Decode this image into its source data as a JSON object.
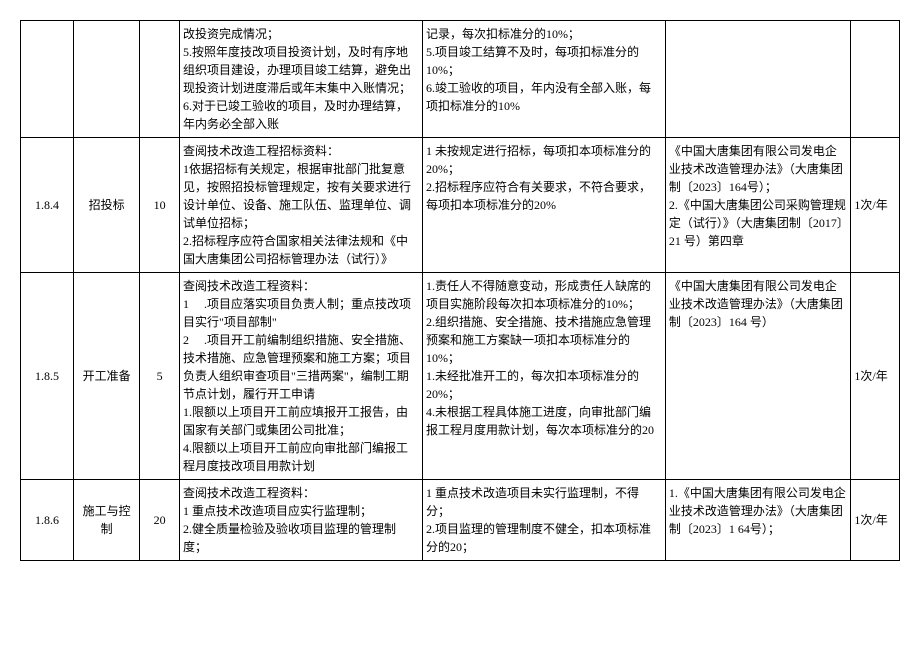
{
  "table": {
    "rows": [
      {
        "col1": "",
        "col2": "",
        "col3": "",
        "col4": "改投资完成情况；\n5.按照年度技改项目投资计划，及时有序地组织项目建设，办理项目竣工结算，避免出现投资计划进度滞后或年末集中入账情况；\n6.对于已竣工验收的项目，及时办理结算，年内务必全部入账",
        "col5": "记录，每次扣标准分的10%；\n5.项目竣工结算不及时，每项扣标准分的10%；\n6.竣工验收的项目，年内没有全部入账，每项扣标准分的10%",
        "col6": "",
        "col7": ""
      },
      {
        "col1": "1.8.4",
        "col2": "招投标",
        "col3": "10",
        "col4": "查阅技术改造工程招标资料：\n1依据招标有关规定，根据审批部门批复意见，按照招投标管理规定，按有关要求进行设计单位、设备、施工队伍、监理单位、调试单位招标；\n2.招标程序应符合国家相关法律法规和《中国大唐集团公司招标管理办法（试行）》",
        "col5": "1 未按规定进行招标，每项扣本项标准分的20%；\n2.招标程序应符合有关要求，不符合要求，每项扣本项标准分的20%",
        "col6": "《中国大唐集团有限公司发电企业技术改造管理办法》（大唐集团制〔2023〕164号）；\n2.《中国大唐集团公司采购管理规定（试行）》（大唐集团制〔2017〕21 号）第四章",
        "col7": "1次/年"
      },
      {
        "col1": "1.8.5",
        "col2": "开工准备",
        "col3": "5",
        "col4": "查阅技术改造工程资料：\n1 　.项目应落实项目负责人制；重点技改项目实行\"项目部制\"\n2 　.项目开工前编制组织措施、安全措施、技术措施、应急管理预案和施工方案；项目负责人组织审查项目\"三措两案\"，编制工期节点计划，履行开工申请\n1.限额以上项目开工前应填报开工报告，由国家有关部门或集团公司批准；\n4.限额以上项目开工前应向审批部门编报工程月度技改项目用款计划",
        "col5": "1.责任人不得随意变动，形成责任人缺席的项目实施阶段每次扣本项标准分的10%；\n2.组织措施、安全措施、技术措施应急管理预案和施工方案缺一项扣本项标准分的10%；\n1.未经批准开工的，每次扣本项标准分的20%；\n4.未根据工程具体施工进度，向审批部门编报工程月度用款计划，每次本项标准分的20",
        "col6": "《中国大唐集团有限公司发电企业技术改造管理办法》（大唐集团制〔2023〕164 号）",
        "col7": "1次/年"
      },
      {
        "col1": "1.8.6",
        "col2": "施工与控制",
        "col3": "20",
        "col4": "查阅技术改造工程资料：\n1 重点技术改造项目应实行监理制；\n2.健全质量检验及验收项目监理的管理制度；",
        "col5": "1 重点技术改造项目未实行监理制，不得分；\n2.项目监理的管理制度不健全，扣本项标准分的20；",
        "col6": "1.《中国大唐集团有限公司发电企业技术改造管理办法》（大唐集团制〔2023〕1 64号）；",
        "col7": "1次/年"
      }
    ]
  }
}
